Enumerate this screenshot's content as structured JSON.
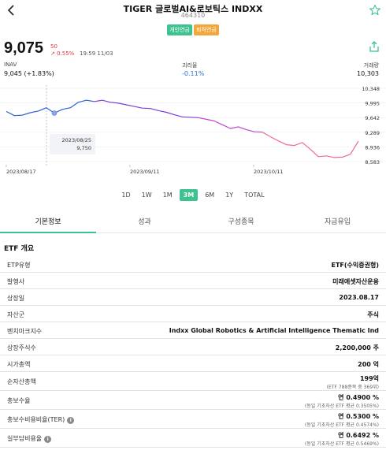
{
  "header": {
    "title": "TIGER 글로벌AI&로보틱스 INDXX",
    "code": "464310",
    "badges": [
      "개인연금",
      "퇴직연금"
    ]
  },
  "quote": {
    "price": "9,075",
    "change_value": "50",
    "change_percent": "↗ 0.55%",
    "timestamp": "19:59 11/03"
  },
  "stats": [
    {
      "label": "INAV",
      "value": "9,045 (+1.83%)"
    },
    {
      "label": "괴리율",
      "value": "-0.11%"
    },
    {
      "label": "거래량",
      "value": "10,303"
    }
  ],
  "chart_data": {
    "type": "line",
    "y_ticks": [
      "10,348",
      "9,995",
      "9,642",
      "9,289",
      "8,936",
      "8,583"
    ],
    "x_ticks": [
      "2023/08/17",
      "2023/09/11",
      "2023/10/11"
    ],
    "ylim": [
      8583,
      10348
    ],
    "tooltip": {
      "date": "2023/08/25",
      "value": "9,750"
    },
    "series": [
      {
        "color": "#2b5fd9",
        "values": [
          9790,
          9690,
          9700,
          9760,
          9800,
          9880,
          9750,
          9840,
          9880,
          10010,
          10060,
          10030
        ]
      },
      {
        "color": "#7a3fd6",
        "values": [
          10030,
          10060,
          10010,
          9990,
          9950,
          9910,
          9870,
          9860,
          9810,
          9770,
          9710,
          9660,
          9650,
          9640
        ]
      },
      {
        "color": "#c346c8",
        "values": [
          9640,
          9600,
          9560,
          9470,
          9380,
          9420,
          9350,
          9300,
          9290
        ]
      },
      {
        "color": "#f26a8c",
        "values": [
          9290,
          9180,
          9080,
          8990,
          8970,
          9040,
          8880,
          8700,
          8720,
          8680,
          8690,
          8760,
          9075
        ]
      }
    ]
  },
  "ranges": [
    "1D",
    "1W",
    "1M",
    "3M",
    "6M",
    "1Y",
    "TOTAL"
  ],
  "active_range": "3M",
  "tabs": [
    "기본정보",
    "성과",
    "구성종목",
    "자금유입"
  ],
  "active_tab": "기본정보",
  "section_title": "ETF 개요",
  "info_rows": [
    {
      "label": "ETP유형",
      "value": "ETF(수익증권형)"
    },
    {
      "label": "발행사",
      "value": "미래에셋자산운용"
    },
    {
      "label": "상장일",
      "value": "2023.08.17"
    },
    {
      "label": "자산군",
      "value": "주식"
    },
    {
      "label": "벤치마크지수",
      "value": "Indxx Global Robotics & Artificial Intelligence Thematic Ind"
    },
    {
      "label": "상장주식수",
      "value": "2,200,000 주"
    },
    {
      "label": "시가총액",
      "value": "200 억"
    },
    {
      "label": "순자산총액",
      "value": "199억",
      "sub": "(ETF 788종목 중 369위)"
    },
    {
      "label": "총보수율",
      "value": "연 0.4900 %",
      "sub": "(동일 기초자산 ETF 평균 0.3505%)"
    },
    {
      "label": "총보수비용비율(TER)",
      "value": "연 0.5300 %",
      "sub": "(동일 기초자산 ETF 평균 0.4574%)",
      "info": "i"
    },
    {
      "label": "실부담비용율",
      "value": "연 0.6492 %",
      "sub": "(동일 기초자산 ETF 평균 0.5469%)",
      "info": "i"
    }
  ],
  "colors": {
    "accent": "#3ec28f",
    "down": "#2b6fd0",
    "up": "#e4393c"
  },
  "icons": {
    "back": "chevron-left-icon",
    "favorite": "star-outline-icon",
    "share": "share-icon",
    "info": "info-circle-icon"
  }
}
